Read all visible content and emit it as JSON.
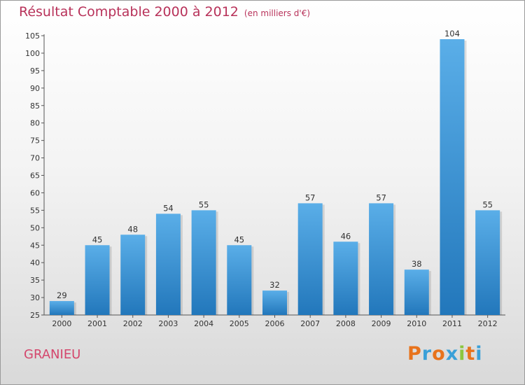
{
  "title": "Résultat Comptable 2000 à 2012",
  "subtitle": "(en milliers d'€)",
  "commune": "GRANIEU",
  "logo": {
    "letters": [
      "P",
      "r",
      "o",
      "x",
      "i",
      "t",
      "i"
    ],
    "colors": [
      "#e8731c",
      "#3aa0d8",
      "#e8731c",
      "#3aa0d8",
      "#8cc63f",
      "#e8731c",
      "#3aa0d8"
    ]
  },
  "colors": {
    "bar_top": "#5aaee8",
    "bar_bottom": "#2277bb",
    "title": "#b8325a"
  },
  "chart_data": {
    "type": "bar",
    "title": "Résultat Comptable 2000 à 2012",
    "categories": [
      "2000",
      "2001",
      "2002",
      "2003",
      "2004",
      "2005",
      "2006",
      "2007",
      "2008",
      "2009",
      "2010",
      "2011",
      "2012"
    ],
    "values": [
      29,
      45,
      48,
      54,
      55,
      45,
      32,
      57,
      46,
      57,
      38,
      104,
      55
    ],
    "ylim": [
      25,
      105
    ],
    "yticks": [
      25,
      30,
      35,
      40,
      45,
      50,
      55,
      60,
      65,
      70,
      75,
      80,
      85,
      90,
      95,
      100,
      105
    ],
    "xlabel": "",
    "ylabel": "",
    "grid": false
  }
}
